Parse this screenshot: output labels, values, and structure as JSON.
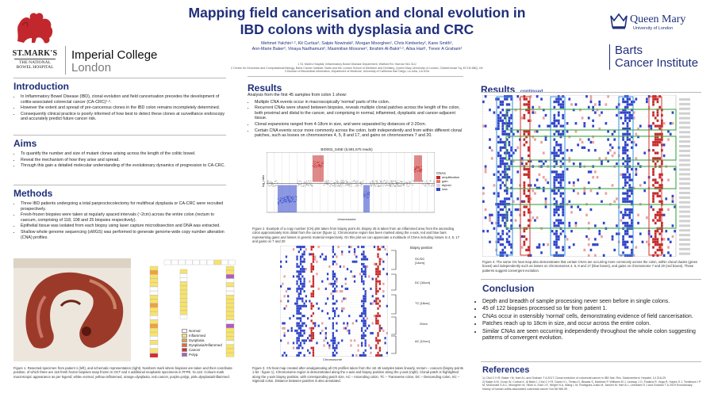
{
  "header": {
    "title_line1": "Mapping field cancerisation and clonal evolution in",
    "title_line2": "IBD colons with dysplasia and CRC",
    "authors_line1": "Mehmet Yalchin¹·², Kit Curtius³, Salpie Nowinski², Morgan Moorghen¹, Chris Kimberley², Kane Smith²,",
    "authors_line2": "Ann-Marie Baker², Vinaya Nadhamuni², Maximilian Mossner², Ibrahim Al-Bakir¹·², Ailsa Hart¹, Trevor A Graham²",
    "affil_1": "1 St. Mark's Hospital, Inflammatory Bowel Disease Department, Watford Rd, Harrow HA1 3UJ",
    "affil_2": "2 Centre for Genomics and Computational Biology, Barts Cancer Institute, Barts and the London School of Medicine and Dentistry, Queen Mary University of London, Charterhouse Sq, EC1M 6BQ, UK",
    "affil_3": "3 Division of Biomedical Informatics, Department of Medicine, University of California San Diego, La Jolla, CA USA"
  },
  "logos": {
    "stmarks_1": "ST.MARK'S",
    "stmarks_2": "THE NATIONAL",
    "stmarks_3": "BOWEL HOSPITAL",
    "imperial_1": "Imperial College",
    "imperial_2": "London",
    "qm_1": "Queen Mary",
    "qm_2": "University of London",
    "bci_1": "Barts",
    "bci_2": "Cancer Institute"
  },
  "intro": {
    "heading": "Introduction",
    "items": [
      "In Inflammatory Bowel Disease (IBD), clonal evolution and field cancerisation precedes the development of colitis-associated colorectal cancer (CA-CRC)¹·².",
      "However the extent and spread of pre-cancerous clones in the IBD colon remains incompletely determined.",
      "Consequently clinical practice is poorly informed of how best to detect these clones at surveillance endoscopy and accurately predict future cancer risk."
    ]
  },
  "aims": {
    "heading": "Aims",
    "items": [
      "To quantify the number and size of mutant clones arising across the length of the colitic bowel.",
      "Reveal the mechanism of how they arise and spread.",
      "Through this gain a detailed molecular understanding of the evolutionary dynamics of progression to CA-CRC."
    ]
  },
  "methods": {
    "heading": "Methods",
    "items": [
      "Three IBD patients undergoing a total panproctocolectomy for multifocal dysplasia or CA-CRC were recruited prospectively.",
      "Fresh-frozen biopsies were taken at regularly spaced intervals (~2cm) across the entire colon (rectum to caecum, comprising of 118, 108 and 25 biopsies respectively).",
      "Epithelial tissue was isolated from each biopsy using laser capture microdissection and DNA was extracted.",
      "Shallow whole genome sequencing (sWGS) was performed to generate genome-wide copy number alteration (CNA) profiles."
    ]
  },
  "fig1": {
    "legend": [
      "Normal",
      "Inflammed",
      "Dysplasia",
      "Dysplasia/Inflammed",
      "Cancer",
      "Polyp"
    ],
    "legend_colors": [
      "#ffffff",
      "#f7e36b",
      "#f0a040",
      "#e86a2a",
      "#d72b2b",
      "#b05ac2"
    ],
    "caption": "Figure 1. Resected specimen from patient 1 (left), and schematic representation (right). Numbers mark where biopsies are taken and their coordinate position, of which there are 118 fresh frozen biopsies snap frozen in OCT and 4 additional neoplastic specimens in FFPE. N=122. Colours mark macroscopic appearance as per legend; white=normal, yellow=inflammed, orange=dysplasia, red=cancer, purple=polyp, pink=dysplasia/inflammed."
  },
  "results": {
    "heading": "Results",
    "intro": "Analysis from the first 45 samples from colon 1 show:",
    "items": [
      "Multiple CNA events occur in macroscopically 'normal' parts of the colon.",
      "Recurrent CNAs were shared between biopsies, reveals multiple clonal patches across the length of the colon, both proximal and distal to the cancer, and comprising in normal, inflammed, dysplastic and cancer-adjacent tissue.",
      "Clonal expansions ranged from 4-18cm in size, and were separated by distances of 2-20cm.",
      "Certain CNA events occur more commonly across the colon, both independently and from within different clonal patches, such as losses on chromosomes 4, 5, 8 and 17, and gains on chromosomes 7 and 20."
    ]
  },
  "fig2": {
    "title": "BID002_S45E (5,591,675 reads)",
    "ylabel": "log_ratio",
    "xlabel": "chromosome",
    "legend_title": "CNAs",
    "legend": [
      "amplification",
      "gain",
      "diploid",
      "loss"
    ],
    "legend_colors": [
      "#c62828",
      "#e57373",
      "#d9d9d9",
      "#2e43c9"
    ],
    "caption": "Figure 2. Example of a copy number (CN) plot taken from biopsy point 45. Biopsy 45 is taken from an inflammed area from the ascending colon approximately 8cm distal from the cancer (figure 1). Chromosome region has been marked along the x-axis, red and blue bars representing gains and losses in genetic material respectively. On this plot we can appreciate a multitude of CNAs including losses in 4, 5, 17 and gains on 7 and 20"
  },
  "fig3": {
    "labels": [
      "Biopsy position",
      "SC/DC [14cm]",
      "DC [16cm]",
      "TC [18cm]",
      "20cm",
      "AC [12cm]"
    ],
    "xlabel": "Chromosome",
    "caption": "Figure 3. CN heat map created after amalgamating all CN profiles taken from the 1st 45 samples taken linearly, rectum – caecum (biopsy points 1-52 - figure 1). Chromosome region is demonstrated along the x-axis and biopsy position along the y-axis (right). Clonal patch is highlighted along the y-axis biopsy position, with corresponding patch size. AC – Ascending colon, TC – Transverse colon, DC – Descending colon, SC – Sigmoid colon. Distance between patches is also annotated."
  },
  "results2": {
    "heading": "Results",
    "sub": "continued",
    "caption": "Figure 4. The same CN heat map also demonstrates that certain CNAs are occurring more commonly across the colon, within clonal clades (green boxes) and independently such as losses on chromosomes 4, 5, 8 and 17 (blue boxes), and gains on chromosome 7 and 20 (red boxes). These patterns suggest convergent evolution."
  },
  "conclusion": {
    "heading": "Conclusion",
    "items": [
      "Depth and breadth of sample processing never seen before in single colons.",
      "45 of 122 biopsies processed so far from patient 1.",
      "CNAs occur in ostensibly 'normal' cells, demonstrating evidence of field cancerisation.",
      "Patches reach up to 18cm in size, and occur across the entire colon.",
      "Similar CNAs are seen occurring independently throughout the whole colon suggesting patterns of convergent evolution."
    ]
  },
  "references": {
    "heading": "References",
    "items": [
      "1) Choi C H R, Baker I M, Hart A L and Graham T A 2017 Clonal evolution of colorectal cancer in IBD Nat. Rev. Gastroenterol. Hepatol. 14 218-29",
      "2) Baker A M, Cross W, Curtius K, Al Bakir I, Choi C H R, Davis H L, Temko D, Biswas S, Martinez P, Williams M J, Lindsay J O, Feakins R, Vega R, Hayes S J, Tomlinson I P M, McDonald S A C, Moorghen M, Silver A, East J E, Wright N A, Wang L M, Rodriguez-Justo M, Jansen M, Hart A L, Leedham S J and Graham T A 2019 Evolutionary history of human colitis-associated colorectal cancer Gut 68 985-95"
    ]
  }
}
